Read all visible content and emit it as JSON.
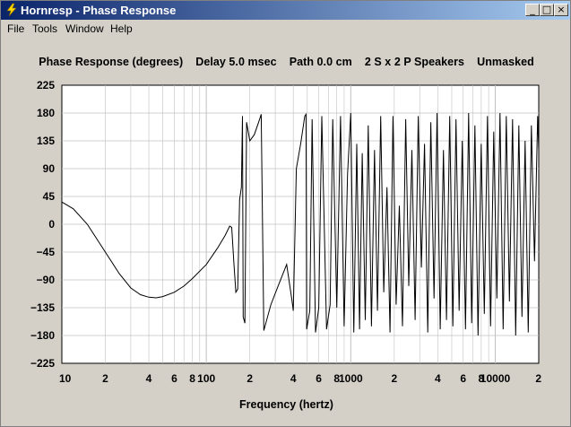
{
  "window": {
    "title": "Hornresp - Phase Response",
    "icon": "lightning-bolt-icon",
    "minimize_label": "_",
    "restore_label": "□",
    "close_label": "×"
  },
  "menu": [
    "File",
    "Tools",
    "Window",
    "Help"
  ],
  "heading": {
    "parts": [
      "Phase Response (degrees)",
      "Delay 5.0 msec",
      "Path 0.0 cm",
      "2 S x 2 P Speakers",
      "Unmasked"
    ]
  },
  "colors": {
    "plot_background": "#ffffff",
    "grid": "#c0c0c0",
    "trace": "#000000",
    "titlebar_start": "#0a246a",
    "titlebar_end": "#a6caf0"
  },
  "chart_data": {
    "type": "line",
    "xlabel": "Frequency (hertz)",
    "x_scale": "log",
    "xlim": [
      10,
      20000
    ],
    "ylim": [
      -225,
      225
    ],
    "y_ticks": [
      225,
      180,
      135,
      90,
      45,
      0,
      -45,
      -90,
      -135,
      -180,
      -225
    ],
    "x_tick_labels": [
      {
        "value": 10,
        "label": "10"
      },
      {
        "value": 20,
        "label": "2"
      },
      {
        "value": 40,
        "label": "4"
      },
      {
        "value": 60,
        "label": "6"
      },
      {
        "value": 80,
        "label": "8"
      },
      {
        "value": 100,
        "label": "100"
      },
      {
        "value": 200,
        "label": "2"
      },
      {
        "value": 400,
        "label": "4"
      },
      {
        "value": 600,
        "label": "6"
      },
      {
        "value": 800,
        "label": "8"
      },
      {
        "value": 1000,
        "label": "1000"
      },
      {
        "value": 2000,
        "label": "2"
      },
      {
        "value": 4000,
        "label": "4"
      },
      {
        "value": 6000,
        "label": "6"
      },
      {
        "value": 8000,
        "label": "8"
      },
      {
        "value": 10000,
        "label": "10000"
      },
      {
        "value": 20000,
        "label": "2"
      }
    ],
    "grid": true,
    "series": [
      {
        "values": [
          [
            10,
            36
          ],
          [
            12,
            25
          ],
          [
            15,
            0
          ],
          [
            20,
            -45
          ],
          [
            25,
            -80
          ],
          [
            30,
            -103
          ],
          [
            35,
            -114
          ],
          [
            40,
            -118
          ],
          [
            45,
            -119
          ],
          [
            50,
            -117
          ],
          [
            60,
            -110
          ],
          [
            70,
            -100
          ],
          [
            80,
            -88
          ],
          [
            100,
            -65
          ],
          [
            120,
            -38
          ],
          [
            135,
            -18
          ],
          [
            145,
            -3
          ],
          [
            150,
            -5
          ],
          [
            155,
            -60
          ],
          [
            160,
            -110
          ],
          [
            165,
            -105
          ],
          [
            170,
            40
          ],
          [
            175,
            60
          ],
          [
            178,
            175
          ],
          [
            180,
            -150
          ],
          [
            185,
            -160
          ],
          [
            190,
            165
          ],
          [
            200,
            135
          ],
          [
            215,
            145
          ],
          [
            230,
            165
          ],
          [
            240,
            178
          ],
          [
            250,
            -172
          ],
          [
            280,
            -130
          ],
          [
            320,
            -95
          ],
          [
            360,
            -65
          ],
          [
            390,
            -120
          ],
          [
            400,
            -140
          ],
          [
            420,
            90
          ],
          [
            450,
            130
          ],
          [
            480,
            175
          ],
          [
            490,
            178
          ],
          [
            495,
            -170
          ],
          [
            520,
            -140
          ],
          [
            540,
            170
          ],
          [
            570,
            -175
          ],
          [
            600,
            -135
          ],
          [
            630,
            175
          ],
          [
            680,
            -170
          ],
          [
            720,
            -130
          ],
          [
            750,
            170
          ],
          [
            800,
            -135
          ],
          [
            850,
            175
          ],
          [
            900,
            -165
          ],
          [
            950,
            80
          ],
          [
            1000,
            180
          ],
          [
            1050,
            -175
          ],
          [
            1100,
            130
          ],
          [
            1150,
            -170
          ],
          [
            1200,
            115
          ],
          [
            1260,
            -155
          ],
          [
            1320,
            160
          ],
          [
            1390,
            -165
          ],
          [
            1460,
            120
          ],
          [
            1530,
            -140
          ],
          [
            1610,
            175
          ],
          [
            1690,
            -110
          ],
          [
            1780,
            60
          ],
          [
            1870,
            -175
          ],
          [
            1960,
            175
          ],
          [
            2060,
            -130
          ],
          [
            2170,
            30
          ],
          [
            2280,
            -165
          ],
          [
            2400,
            170
          ],
          [
            2520,
            -100
          ],
          [
            2650,
            120
          ],
          [
            2790,
            -155
          ],
          [
            2930,
            175
          ],
          [
            3080,
            -70
          ],
          [
            3240,
            130
          ],
          [
            3410,
            -175
          ],
          [
            3580,
            165
          ],
          [
            3770,
            -120
          ],
          [
            3960,
            180
          ],
          [
            4160,
            -170
          ],
          [
            4380,
            120
          ],
          [
            4600,
            -155
          ],
          [
            4840,
            175
          ],
          [
            5090,
            -165
          ],
          [
            5350,
            170
          ],
          [
            5620,
            -140
          ],
          [
            5910,
            135
          ],
          [
            6220,
            -170
          ],
          [
            6540,
            180
          ],
          [
            6870,
            -160
          ],
          [
            7230,
            160
          ],
          [
            7600,
            -180
          ],
          [
            7990,
            130
          ],
          [
            8400,
            -145
          ],
          [
            8830,
            175
          ],
          [
            9280,
            -165
          ],
          [
            9760,
            150
          ],
          [
            10260,
            -120
          ],
          [
            10790,
            180
          ],
          [
            11340,
            -170
          ],
          [
            11920,
            175
          ],
          [
            12540,
            -125
          ],
          [
            13180,
            170
          ],
          [
            13860,
            -180
          ],
          [
            14570,
            160
          ],
          [
            15320,
            -150
          ],
          [
            16100,
            135
          ],
          [
            16930,
            -175
          ],
          [
            17800,
            160
          ],
          [
            18710,
            -60
          ],
          [
            19670,
            175
          ],
          [
            20000,
            120
          ]
        ]
      }
    ]
  }
}
